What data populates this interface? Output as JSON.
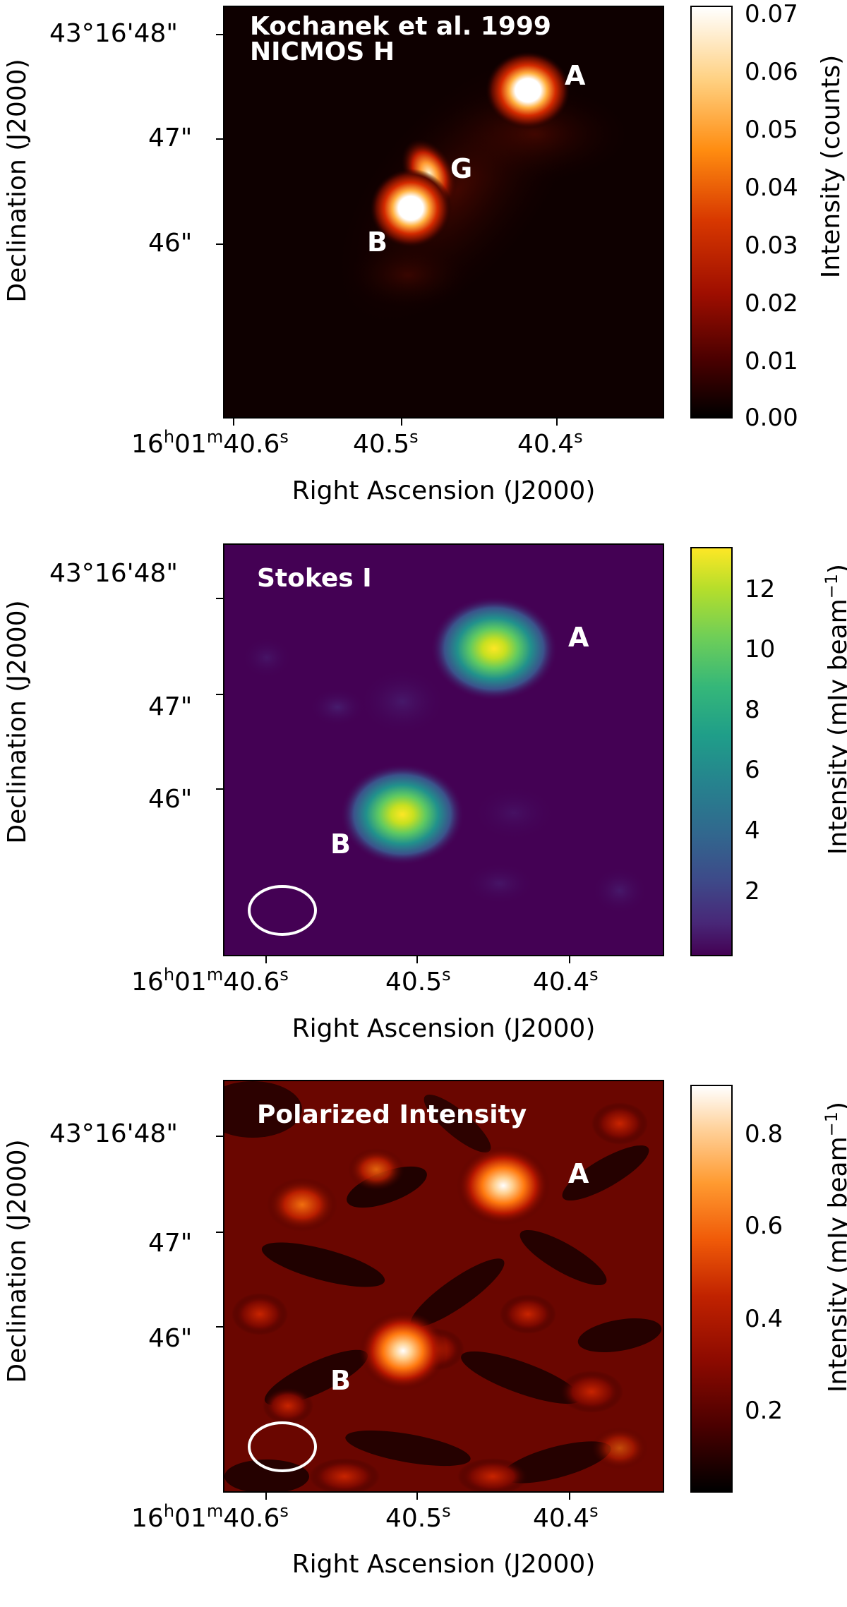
{
  "panels": [
    {
      "title_lines": [
        "Kochanek et al. 1999",
        "NICMOS H"
      ],
      "dec_ticks": [
        "43°16'48\"",
        "47\"",
        "46\""
      ],
      "ra_ticks": [
        "40.5",
        "40.4"
      ],
      "ra_first": {
        "h": "16",
        "hu": "h",
        "m": "01",
        "mu": "m",
        "s": "40.6",
        "su": "s"
      },
      "xlabel": "Right Ascension (J2000)",
      "ylabel": "Declination (J2000)",
      "colorbar_label": "Intensity (counts)",
      "colorbar_ticks": [
        "0.07",
        "0.06",
        "0.05",
        "0.04",
        "0.03",
        "0.02",
        "0.01",
        "0.00"
      ],
      "labels": [
        "A",
        "G",
        "B"
      ],
      "colormap": "afmhot",
      "colors": {
        "low": "#000000",
        "mid": "#c81e00",
        "high": "#ffffff"
      }
    },
    {
      "title_lines": [
        "Stokes I"
      ],
      "dec_ticks": [
        "43°16'48\"",
        "47\"",
        "46\""
      ],
      "ra_ticks": [
        "40.5",
        "40.4"
      ],
      "ra_first": {
        "h": "16",
        "hu": "h",
        "m": "01",
        "mu": "m",
        "s": "40.6",
        "su": "s"
      },
      "xlabel": "Right Ascension (J2000)",
      "ylabel": "Declination (J2000)",
      "colorbar_label": "Intensity (mJy beam",
      "colorbar_label_sup": "−1",
      "colorbar_label_end": ")",
      "colorbar_ticks": [
        "12",
        "10",
        "8",
        "6",
        "4",
        "2"
      ],
      "labels": [
        "A",
        "B"
      ],
      "colormap": "viridis",
      "colors": {
        "low": "#440154",
        "mid": "#21918c",
        "high": "#fde725"
      }
    },
    {
      "title_lines": [
        "Polarized Intensity"
      ],
      "dec_ticks": [
        "43°16'48\"",
        "47\"",
        "46\""
      ],
      "ra_ticks": [
        "40.5",
        "40.4"
      ],
      "ra_first": {
        "h": "16",
        "hu": "h",
        "m": "01",
        "mu": "m",
        "s": "40.6",
        "su": "s"
      },
      "xlabel": "Right Ascension (J2000)",
      "ylabel": "Declination (J2000)",
      "colorbar_label": "Intensity (mJy beam",
      "colorbar_label_sup": "−1",
      "colorbar_label_end": ")",
      "colorbar_ticks": [
        "0.8",
        "0.6",
        "0.4",
        "0.2"
      ],
      "labels": [
        "A",
        "B"
      ],
      "colormap": "afmhot",
      "colors": {
        "low": "#000000",
        "mid": "#c81e00",
        "high": "#ffffff"
      }
    }
  ]
}
